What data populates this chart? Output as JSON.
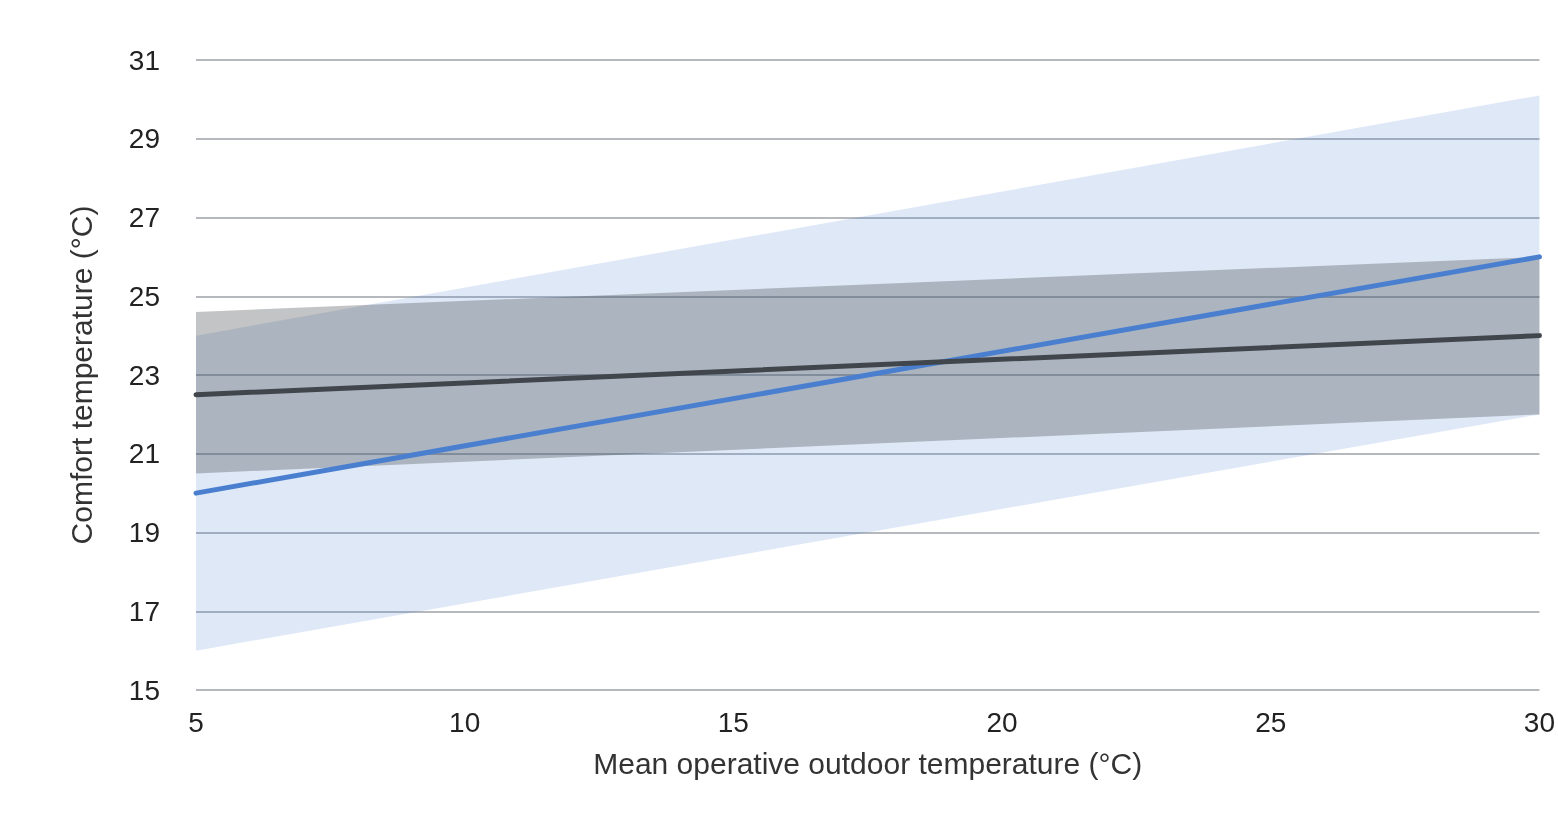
{
  "chart_data": {
    "type": "line",
    "xlabel": "Mean operative outdoor temperature (°C)",
    "ylabel": "Comfort temperature (°C)",
    "x": [
      5,
      30
    ],
    "series": [
      {
        "color": "#4a7fd0",
        "values": [
          20,
          26
        ],
        "lower": [
          16,
          22
        ],
        "upper": [
          24,
          30.1
        ]
      },
      {
        "color": "#41464c",
        "values": [
          22.5,
          24
        ],
        "lower": [
          20.5,
          22
        ],
        "upper": [
          24.6,
          26
        ]
      }
    ],
    "xlim": [
      5,
      30
    ],
    "xticks": [
      5,
      10,
      15,
      20,
      25,
      30
    ],
    "ylim": [
      15,
      31
    ],
    "yticks": [
      15,
      17,
      19,
      21,
      23,
      25,
      27,
      29,
      31
    ],
    "grid": "y",
    "marker": "none",
    "line_style": "solid"
  }
}
